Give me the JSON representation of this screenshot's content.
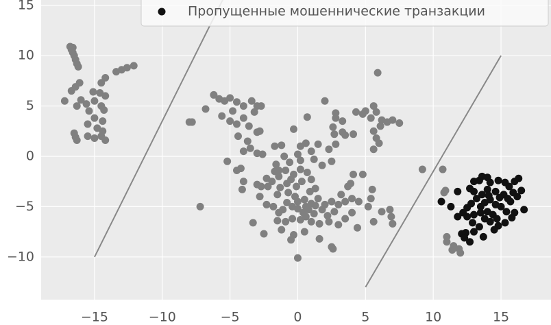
{
  "chart_data": {
    "type": "scatter",
    "xlim": [
      -18.94,
      18.69
    ],
    "ylim": [
      -14.24,
      15.53
    ],
    "xticks": [
      {
        "value": -15,
        "label": "−15"
      },
      {
        "value": -10,
        "label": "−10"
      },
      {
        "value": -5,
        "label": "−5"
      },
      0,
      5,
      10,
      15
    ],
    "yticks": [
      {
        "value": -10,
        "label": "−10"
      },
      {
        "value": -5,
        "label": "−5"
      },
      0,
      5,
      10,
      15
    ],
    "grid": true,
    "legend": "upper right",
    "series": [
      {
        "color": "#808080",
        "x": [
          -16.8,
          -16.7,
          -16.6,
          -16.5,
          -16.4,
          -16.3,
          -16.2,
          -16.6,
          -17.2,
          -16.7,
          -16.4,
          -16.1,
          -14.5,
          -14.2,
          -13.4,
          -13,
          -12.6,
          -12.1,
          -16.5,
          -16.4,
          -16.3,
          -15.5,
          -15,
          -14.5,
          -14.2,
          -14.8,
          -15.5,
          -15,
          -14.4,
          -16,
          -15.6,
          -15,
          -14.6,
          -14.2,
          -14.5,
          -16.3,
          -15.4,
          -14.3,
          -15.1,
          -14.4,
          -8,
          -7.8,
          -6.8,
          -6.2,
          -5.8,
          -5.4,
          -5,
          -4.5,
          -4.8,
          -4,
          -3.4,
          -3,
          -3.2,
          -2.7,
          -5.6,
          -5,
          -4.5,
          -4,
          -3.6,
          -2.8,
          -3,
          -4.4,
          -3.7,
          -3.5,
          -2.6,
          -3,
          -4,
          -4.5,
          -4.2,
          -4,
          -5.2,
          -4.1,
          -3,
          -2.7,
          -2.3,
          -1.9,
          -1.7,
          -1.4,
          -1.6,
          -1.7,
          -1.2,
          -1,
          -0.6,
          -0.9,
          -0.3,
          0.2,
          -0.5,
          -1.3,
          -0.8,
          -0.1,
          0.3,
          0.7,
          1,
          1.3,
          0.9,
          -0.2,
          0,
          0.5,
          1,
          1.5,
          2,
          2.5,
          3,
          2.7,
          2.2,
          1.8,
          1.2,
          0.8,
          0.4,
          0,
          -0.4,
          -0.8,
          -1.1,
          -1.4,
          -1.5,
          -0.9,
          -0.4,
          0.2,
          0.6,
          1,
          1.6,
          2.3,
          3,
          3.5,
          4,
          4.5,
          4,
          3.5,
          3.2,
          3.7,
          3.9,
          4.1,
          4.8,
          5.5,
          5.4,
          5.2,
          4.4,
          5.6,
          6.2,
          6.9,
          7,
          6.8,
          -1.2,
          -0.3,
          -0.5,
          0.5,
          1.6,
          2.5,
          2.6,
          0,
          -1.5,
          -2.8,
          -1.8,
          -3.3,
          -2.3,
          -2.5,
          -7.2,
          0,
          0.2,
          0.6,
          1,
          1.5,
          1.2,
          1.8,
          2.5,
          2.3,
          2.8,
          2.7,
          3.3,
          3.5,
          4.1,
          3.3,
          2.8,
          2.8,
          2.6,
          0.7,
          -0.3,
          2,
          4.3,
          4.8,
          5,
          5.6,
          5.8,
          6.2,
          6.6,
          7,
          7.5,
          5.4,
          5.6,
          5.8,
          6.1,
          6,
          5.6,
          5.9,
          9.2,
          10.7,
          10.9,
          10.8,
          11,
          11.5,
          11.4,
          11.9,
          12,
          11,
          -1.4,
          -2.2,
          0.6,
          1.3,
          -0.7,
          0.2
        ],
        "values": [
          10.9,
          10.6,
          10.3,
          10,
          9.6,
          9.2,
          8.9,
          10.8,
          5.5,
          6.5,
          6.9,
          7.3,
          7.3,
          7.8,
          8.4,
          8.6,
          8.8,
          9,
          2.3,
          1.9,
          1.6,
          2,
          1.8,
          2,
          1.6,
          2.8,
          3.2,
          3.8,
          3.5,
          5.6,
          5.2,
          5.5,
          6.3,
          6,
          5,
          5,
          4.5,
          4.6,
          6.4,
          2.5,
          3.4,
          3.4,
          4.7,
          6.1,
          5.7,
          5.5,
          5.8,
          5.4,
          4.5,
          5,
          5.5,
          5,
          4.4,
          5,
          4,
          3.5,
          3.2,
          3.8,
          3,
          2.5,
          2.4,
          2,
          1.5,
          0.8,
          0.2,
          0.3,
          0.5,
          -1.4,
          -1.2,
          -2.5,
          -0.5,
          -3.3,
          -2.8,
          -3,
          -2.2,
          -2.5,
          -1.5,
          -2,
          -0.8,
          1,
          1.1,
          0,
          -0.6,
          -1.4,
          -1.8,
          -1.3,
          -2.3,
          -3.1,
          -2.7,
          -3,
          -2.5,
          -1.6,
          -2.3,
          -3.2,
          -3.5,
          -4,
          -4.5,
          -4.3,
          -4.7,
          -4.2,
          -4.8,
          -4.5,
          -4.8,
          -5.5,
          -5.9,
          -5.3,
          -5.7,
          -5.3,
          -5.6,
          -5.2,
          -5,
          -4.6,
          -5.3,
          -5.6,
          -6.4,
          -6.5,
          -6.2,
          -6.3,
          -6,
          -6.5,
          -6.7,
          -6.5,
          -6.8,
          -6.2,
          -5.6,
          -4.5,
          -4.2,
          -4.5,
          -3.8,
          -3,
          -2.7,
          -1.8,
          -1.8,
          -3.3,
          -4.2,
          -5,
          -7.1,
          -6.5,
          -5.5,
          -6,
          -6.7,
          -5.3,
          -7.3,
          -7.8,
          -8.3,
          -7.5,
          -8.2,
          -9,
          -9.2,
          -10.1,
          -3.8,
          -4,
          -5,
          -6.6,
          -4.8,
          -7.7,
          -5,
          0.2,
          1,
          1.3,
          0.5,
          1.2,
          -0.3,
          -0.9,
          -0.5,
          0.7,
          1.2,
          2.2,
          2.4,
          2.1,
          2.2,
          3.5,
          3.8,
          4.3,
          2.9,
          3.9,
          2.7,
          5.5,
          4.4,
          4.2,
          4.5,
          5,
          4.4,
          3.6,
          3.4,
          3.6,
          3.3,
          3.8,
          2.5,
          1.8,
          3,
          1.3,
          0.7,
          8.3,
          -1.3,
          -1.3,
          -3.4,
          -3.6,
          -8.5,
          -8.9,
          -9.3,
          -9.2,
          -9.6,
          -8,
          -1.4,
          -3,
          -5,
          -4.9,
          -3.6,
          -0.4
        ]
      },
      {
        "name": "Пропущенные мошеннические транзакции",
        "color": "#111111",
        "x": [
          11.3,
          10.6,
          11.8,
          12.7,
          13,
          13.4,
          13.6,
          14,
          14.2,
          14.8,
          15.3,
          15.6,
          16,
          16.3,
          16.5,
          16.2,
          16.7,
          16,
          15.7,
          15.2,
          14.6,
          14,
          13.6,
          13.2,
          12.8,
          12.5,
          12.2,
          11.8,
          12.5,
          13,
          13.5,
          13.8,
          14.2,
          14.6,
          15,
          15.4,
          15.8,
          15.3,
          14.8,
          14.2,
          13.8,
          13.4,
          13,
          12.4,
          12.1,
          12.3,
          12.7,
          13.7,
          14.5,
          14,
          14.4,
          13.5,
          14.9,
          15.5,
          14.1,
          13,
          14.7,
          12.9,
          15.9
        ],
        "values": [
          -5,
          -4.5,
          -3.5,
          -3.2,
          -2.5,
          -2.4,
          -2,
          -2.1,
          -2.6,
          -2.4,
          -2.6,
          -3,
          -2.5,
          -2.2,
          -3.4,
          -4,
          -5.3,
          -5.6,
          -4.5,
          -3.8,
          -3.5,
          -3.3,
          -3.8,
          -4.2,
          -4.7,
          -5.1,
          -5.6,
          -6,
          -6,
          -5.8,
          -5,
          -4.6,
          -4.3,
          -4.8,
          -5,
          -5.5,
          -6.1,
          -6.6,
          -6.9,
          -6.5,
          -6.2,
          -7,
          -7.5,
          -7.6,
          -7.7,
          -8.1,
          -8.5,
          -8,
          -7.3,
          -5.5,
          -5.8,
          -5.6,
          -4.1,
          -4.2,
          -3.9,
          -3.5,
          -6.2,
          -6.6,
          -3.6
        ]
      }
    ],
    "lines": [
      {
        "color": "#888888",
        "x": [
          -15,
          -5
        ],
        "values": [
          -10,
          17
        ]
      },
      {
        "color": "#888888",
        "x": [
          5,
          15
        ],
        "values": [
          -13,
          10
        ]
      }
    ]
  }
}
